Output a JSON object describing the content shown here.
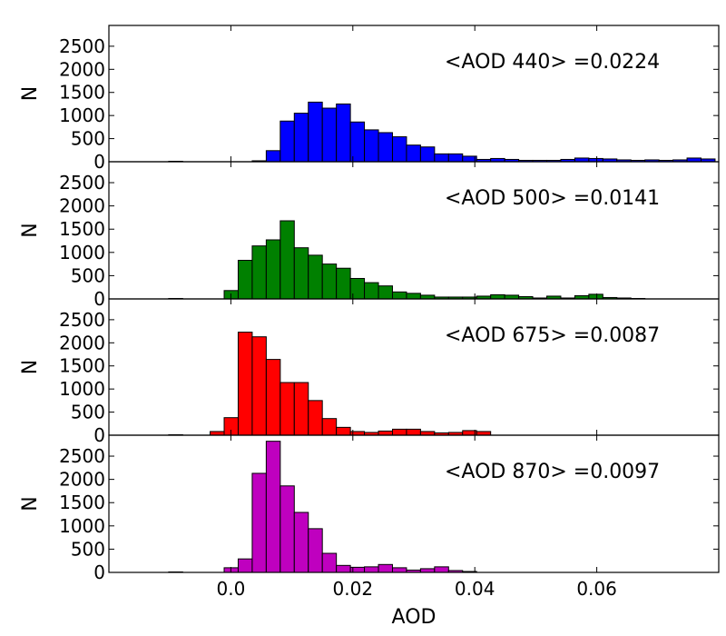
{
  "chart_data": {
    "type": "bar",
    "layout": "stacked-panels-shared-x",
    "xlabel": "AOD",
    "xlim": [
      -0.02,
      0.08
    ],
    "xticks": [
      "0.0",
      "0.02",
      "0.04",
      "0.06"
    ],
    "xtick_values": [
      0.0,
      0.02,
      0.04,
      0.06
    ],
    "bin_width": 0.0023,
    "panels": [
      {
        "ylabel": "N",
        "ylim": [
          0,
          2950
        ],
        "yticks": [
          "0",
          "500",
          "1000",
          "1500",
          "2000",
          "2500"
        ],
        "ytick_values": [
          0,
          500,
          1000,
          1500,
          2000,
          2500
        ],
        "annotation": "<AOD 440> =0.0224",
        "color": "#0000ff",
        "series": [
          {
            "bin_starts": [
              -0.0102,
              0.0035,
              0.0058,
              0.0081,
              0.0104,
              0.0127,
              0.015,
              0.0173,
              0.0196,
              0.0219,
              0.0242,
              0.0265,
              0.0288,
              0.0311,
              0.0334,
              0.0357,
              0.038,
              0.0403,
              0.0426,
              0.0449,
              0.0472,
              0.0495,
              0.0518,
              0.0541,
              0.0564,
              0.0587,
              0.061,
              0.0633,
              0.0656,
              0.0679,
              0.0702,
              0.0725,
              0.0748,
              0.0771
            ],
            "values": [
              10,
              20,
              240,
              880,
              1050,
              1290,
              1160,
              1250,
              860,
              690,
              630,
              540,
              360,
              320,
              170,
              170,
              120,
              50,
              70,
              50,
              30,
              30,
              30,
              50,
              80,
              70,
              60,
              40,
              30,
              40,
              30,
              40,
              80,
              60
            ]
          }
        ]
      },
      {
        "ylabel": "N",
        "ylim": [
          0,
          2950
        ],
        "yticks": [
          "0",
          "500",
          "1000",
          "1500",
          "2000",
          "2500"
        ],
        "ytick_values": [
          0,
          500,
          1000,
          1500,
          2000,
          2500
        ],
        "annotation": "<AOD 500> =0.0141",
        "color": "#008000",
        "series": [
          {
            "bin_starts": [
              -0.0102,
              -0.0011,
              0.0012,
              0.0035,
              0.0058,
              0.0081,
              0.0104,
              0.0127,
              0.015,
              0.0173,
              0.0196,
              0.0219,
              0.0242,
              0.0265,
              0.0288,
              0.0311,
              0.0334,
              0.0357,
              0.038,
              0.0403,
              0.0426,
              0.0449,
              0.0472,
              0.0495,
              0.0518,
              0.0541,
              0.0564,
              0.0587,
              0.061,
              0.0633,
              0.0656
            ],
            "values": [
              10,
              180,
              830,
              1140,
              1270,
              1680,
              1100,
              940,
              750,
              660,
              440,
              350,
              280,
              150,
              120,
              80,
              40,
              40,
              40,
              60,
              90,
              80,
              50,
              20,
              60,
              20,
              70,
              100,
              30,
              20,
              10
            ]
          }
        ]
      },
      {
        "ylabel": "N",
        "ylim": [
          0,
          2950
        ],
        "yticks": [
          "0",
          "500",
          "1000",
          "1500",
          "2000",
          "2500"
        ],
        "ytick_values": [
          0,
          500,
          1000,
          1500,
          2000,
          2500
        ],
        "annotation": "<AOD 675> =0.0087",
        "color": "#ff0000",
        "series": [
          {
            "bin_starts": [
              -0.0102,
              -0.0034,
              -0.0011,
              0.0012,
              0.0035,
              0.0058,
              0.0081,
              0.0104,
              0.0127,
              0.015,
              0.0173,
              0.0196,
              0.0219,
              0.0242,
              0.0265,
              0.0288,
              0.0311,
              0.0334,
              0.0357,
              0.038,
              0.0403
            ],
            "values": [
              10,
              80,
              380,
              2230,
              2130,
              1640,
              1140,
              1140,
              750,
              360,
              170,
              80,
              60,
              90,
              130,
              130,
              80,
              50,
              60,
              100,
              80
            ]
          }
        ]
      },
      {
        "ylabel": "N",
        "ylim": [
          0,
          2950
        ],
        "yticks": [
          "0",
          "500",
          "1000",
          "1500",
          "2000",
          "2500"
        ],
        "ytick_values": [
          0,
          500,
          1000,
          1500,
          2000,
          2500
        ],
        "annotation": "<AOD 870> =0.0097",
        "color": "#bf00bf",
        "series": [
          {
            "bin_starts": [
              -0.0102,
              -0.0011,
              0.0012,
              0.0035,
              0.0058,
              0.0081,
              0.0104,
              0.0127,
              0.015,
              0.0173,
              0.0196,
              0.0219,
              0.0242,
              0.0265,
              0.0288,
              0.0311,
              0.0334,
              0.0357,
              0.038
            ],
            "values": [
              10,
              100,
              290,
              2130,
              2820,
              1860,
              1290,
              940,
              410,
              150,
              110,
              120,
              170,
              100,
              50,
              80,
              120,
              40,
              20
            ]
          }
        ]
      }
    ]
  }
}
